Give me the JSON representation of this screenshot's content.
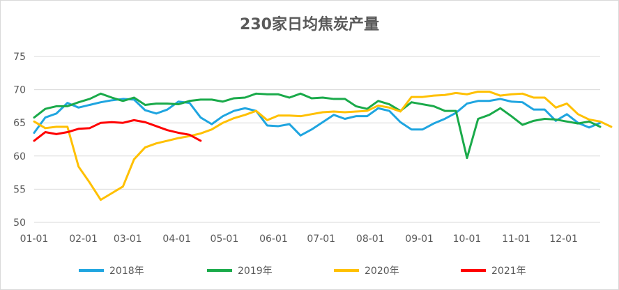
{
  "chart_data": {
    "type": "line",
    "title": "230家日均焦炭产量",
    "xlabel": "",
    "ylabel": "",
    "ylim": [
      50,
      75
    ],
    "yticks": [
      "50",
      "55",
      "60",
      "65",
      "70",
      "75"
    ],
    "xlim": [
      1,
      52
    ],
    "xticks": [
      {
        "label": "01-01",
        "x": 1
      },
      {
        "label": "02-01",
        "x": 5.43
      },
      {
        "label": "03-01",
        "x": 9.43
      },
      {
        "label": "04-01",
        "x": 13.86
      },
      {
        "label": "05-01",
        "x": 18.14
      },
      {
        "label": "06-01",
        "x": 22.57
      },
      {
        "label": "07-01",
        "x": 26.86
      },
      {
        "label": "08-01",
        "x": 31.29
      },
      {
        "label": "09-01",
        "x": 35.71
      },
      {
        "label": "10-01",
        "x": 40
      },
      {
        "label": "11-01",
        "x": 44.43
      },
      {
        "label": "12-01",
        "x": 48.71
      }
    ],
    "grid": true,
    "legend_position": "bottom",
    "series": [
      {
        "name": "2018年",
        "color": "#1FA5E0",
        "values": [
          63.5,
          65.8,
          66.4,
          68.0,
          67.3,
          67.7,
          68.1,
          68.4,
          68.6,
          68.5,
          66.9,
          66.4,
          67.0,
          68.2,
          68.0,
          65.8,
          64.8,
          66.0,
          66.8,
          67.2,
          66.8,
          64.6,
          64.5,
          64.8,
          63.1,
          64.0,
          65.1,
          66.2,
          65.6,
          66.0,
          66.0,
          67.2,
          66.8,
          65.1,
          64.0,
          64.0,
          64.9,
          65.6,
          66.5,
          67.9,
          68.3,
          68.3,
          68.6,
          68.2,
          68.1,
          67.0,
          67.0,
          65.3,
          66.3,
          65.0,
          64.3,
          65.0
        ]
      },
      {
        "name": "2019年",
        "color": "#1AAA4A",
        "values": [
          65.8,
          67.1,
          67.5,
          67.5,
          68.1,
          68.6,
          69.4,
          68.8,
          68.3,
          68.8,
          67.7,
          67.9,
          67.9,
          67.8,
          68.3,
          68.5,
          68.5,
          68.2,
          68.7,
          68.8,
          69.4,
          69.3,
          69.3,
          68.8,
          69.4,
          68.7,
          68.8,
          68.6,
          68.6,
          67.5,
          67.1,
          68.3,
          67.8,
          66.8,
          68.1,
          67.8,
          67.5,
          66.8,
          66.8,
          59.7,
          65.6,
          66.2,
          67.2,
          66.0,
          64.7,
          65.3,
          65.6,
          65.5,
          65.2,
          64.9,
          65.2,
          64.4
        ]
      },
      {
        "name": "2020年",
        "color": "#FFC000",
        "values": [
          65.2,
          64.2,
          64.4,
          64.4,
          58.4,
          56.0,
          53.4,
          54.4,
          55.4,
          59.5,
          61.3,
          61.9,
          62.3,
          62.7,
          63.0,
          63.4,
          64.0,
          65.0,
          65.7,
          66.2,
          66.8,
          65.4,
          66.1,
          66.1,
          66.0,
          66.3,
          66.6,
          66.7,
          66.6,
          66.7,
          66.8,
          67.6,
          67.3,
          66.7,
          68.9,
          68.9,
          69.1,
          69.2,
          69.5,
          69.3,
          69.7,
          69.7,
          69.1,
          69.3,
          69.4,
          68.8,
          68.8,
          67.3,
          67.9,
          66.3,
          65.5,
          65.2,
          64.4
        ]
      },
      {
        "name": "2021年",
        "color": "#FF0000",
        "values": [
          62.3,
          63.6,
          63.3,
          63.6,
          64.1,
          64.2,
          65.0,
          65.1,
          65.0,
          65.4,
          65.1,
          64.5,
          63.9,
          63.5,
          63.2,
          62.3
        ]
      }
    ]
  }
}
